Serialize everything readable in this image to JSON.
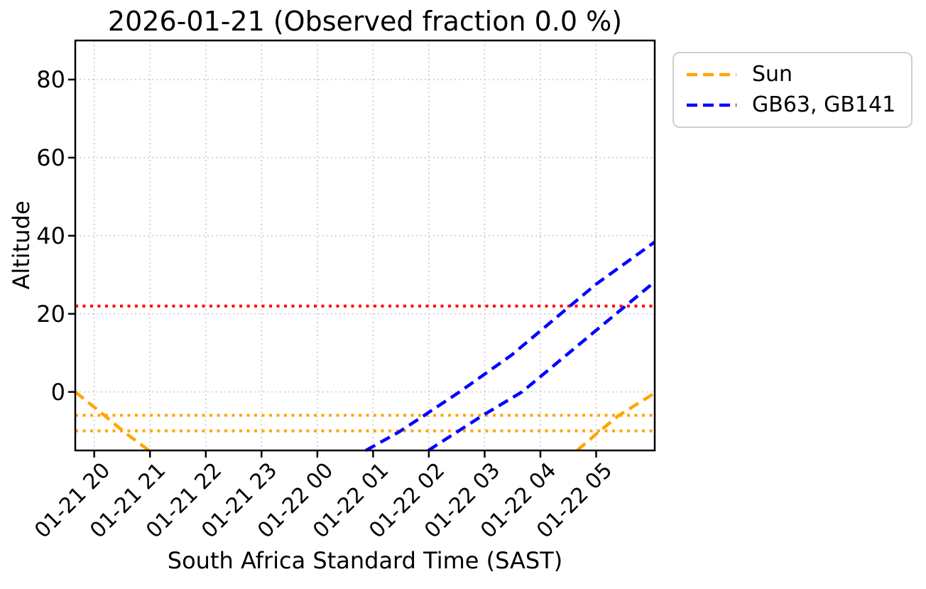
{
  "chart_data": {
    "type": "line",
    "title": "2026-01-21 (Observed fraction 0.0 %)",
    "xlabel": "South Africa Standard Time (SAST)",
    "ylabel": "Altitude",
    "x_encoding": "decimal hours SAST since 01-21 00:00 (values >= 24 are on 01-22)",
    "xlim_hours": [
      19.66,
      30.05
    ],
    "ylim": [
      -15,
      90
    ],
    "grid": true,
    "legend_position": "outside upper right",
    "x_ticks": [
      {
        "h": 20,
        "label": "01-21 20"
      },
      {
        "h": 21,
        "label": "01-21 21"
      },
      {
        "h": 22,
        "label": "01-21 22"
      },
      {
        "h": 23,
        "label": "01-21 23"
      },
      {
        "h": 24,
        "label": "01-22 00"
      },
      {
        "h": 25,
        "label": "01-22 01"
      },
      {
        "h": 26,
        "label": "01-22 02"
      },
      {
        "h": 27,
        "label": "01-22 03"
      },
      {
        "h": 28,
        "label": "01-22 04"
      },
      {
        "h": 29,
        "label": "01-22 05"
      }
    ],
    "y_ticks": [
      0,
      20,
      40,
      60,
      80
    ],
    "colors": {
      "sun": "#FFA500",
      "targets": "#0000FF",
      "limit_line": "#FF0000",
      "grid": "#c9c9c9",
      "spine": "#000000"
    },
    "hlines": [
      {
        "y": 22,
        "color": "#FF0000"
      },
      {
        "y": -6,
        "color": "#FFA500"
      },
      {
        "y": -10,
        "color": "#FFA500"
      }
    ],
    "legend": [
      {
        "label": "Sun",
        "color": "#FFA500"
      },
      {
        "label": "GB63, GB141",
        "color": "#0000FF"
      }
    ],
    "series": [
      {
        "name": "Sun",
        "color": "#FFA500",
        "style": "dashed",
        "segments": [
          [
            [
              19.66,
              0
            ],
            [
              20.18,
              -6
            ],
            [
              20.54,
              -10.3
            ],
            [
              20.98,
              -15
            ]
          ],
          [
            [
              28.66,
              -15
            ],
            [
              29.04,
              -10.3
            ],
            [
              29.41,
              -6
            ],
            [
              30.05,
              -0.3
            ]
          ]
        ]
      },
      {
        "name": "GB63, GB141",
        "color": "#0000FF",
        "style": "dashed",
        "segments": [
          [
            [
              24.87,
              -15
            ],
            [
              25.46,
              -10.3
            ],
            [
              25.92,
              -6
            ],
            [
              26.55,
              0
            ],
            [
              27.48,
              9.4
            ],
            [
              29.0,
              27.6
            ],
            [
              30.05,
              38.4
            ]
          ],
          [
            [
              25.99,
              -15
            ],
            [
              26.5,
              -10.3
            ],
            [
              26.97,
              -6
            ],
            [
              27.67,
              0
            ],
            [
              29.39,
              20.4
            ],
            [
              30.05,
              28.2
            ]
          ]
        ]
      }
    ]
  }
}
